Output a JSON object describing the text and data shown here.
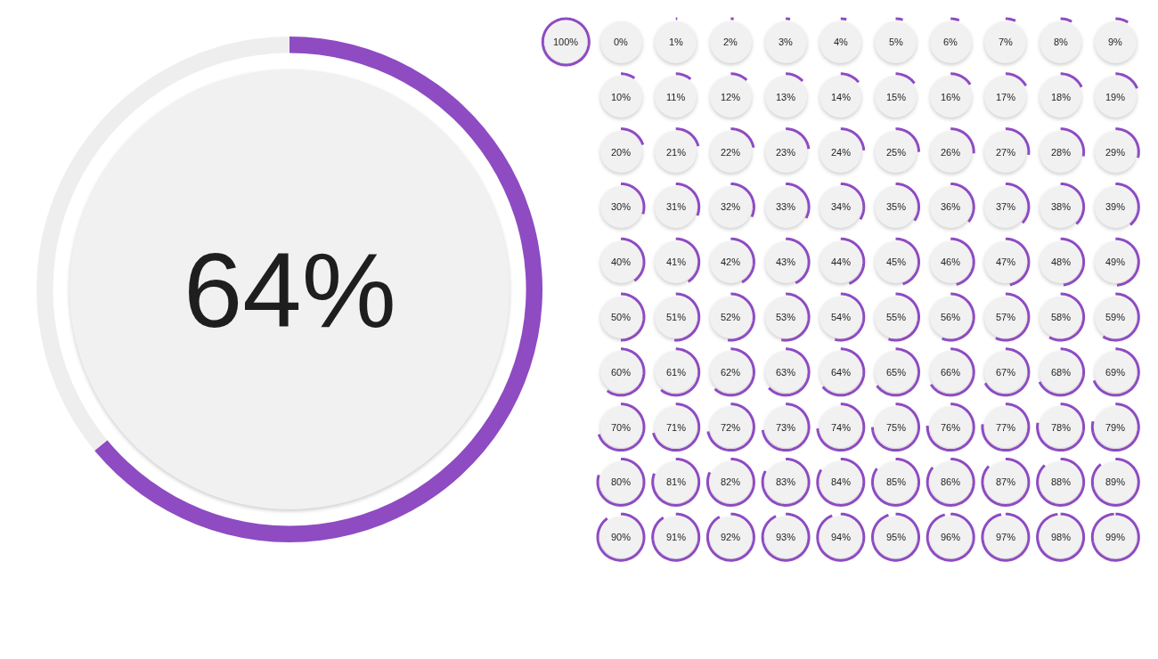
{
  "chart_data": [
    {
      "type": "donut",
      "categories": [
        null,
        null
      ],
      "values": [
        64,
        36
      ],
      "colors": [
        "#8e4bc2",
        "#eeeeee"
      ],
      "annotations": [
        "64%"
      ]
    },
    {
      "type": "other",
      "color": "#8e4bc2",
      "values": [
        100,
        0,
        1,
        2,
        3,
        4,
        5,
        6,
        7,
        8,
        9,
        10,
        11,
        12,
        13,
        14,
        15,
        16,
        17,
        18,
        19,
        20,
        21,
        22,
        23,
        24,
        25,
        26,
        27,
        28,
        29,
        30,
        31,
        32,
        33,
        34,
        35,
        36,
        37,
        38,
        39,
        40,
        41,
        42,
        43,
        44,
        45,
        46,
        47,
        48,
        49,
        50,
        51,
        52,
        53,
        54,
        55,
        56,
        57,
        58,
        59,
        60,
        61,
        62,
        63,
        64,
        65,
        66,
        67,
        68,
        69,
        70,
        71,
        72,
        73,
        74,
        75,
        76,
        77,
        78,
        79,
        80,
        81,
        82,
        83,
        84,
        85,
        86,
        87,
        88,
        89,
        90,
        91,
        92,
        93,
        94,
        95,
        96,
        97,
        98,
        99
      ],
      "value_labels": [
        "100%",
        "0%",
        "1%",
        "2%",
        "3%",
        "4%",
        "5%",
        "6%",
        "7%",
        "8%",
        "9%",
        "10%",
        "11%",
        "12%",
        "13%",
        "14%",
        "15%",
        "16%",
        "17%",
        "18%",
        "19%",
        "20%",
        "21%",
        "22%",
        "23%",
        "24%",
        "25%",
        "26%",
        "27%",
        "28%",
        "29%",
        "30%",
        "31%",
        "32%",
        "33%",
        "34%",
        "35%",
        "36%",
        "37%",
        "38%",
        "39%",
        "40%",
        "41%",
        "42%",
        "43%",
        "44%",
        "45%",
        "46%",
        "47%",
        "48%",
        "49%",
        "50%",
        "51%",
        "52%",
        "53%",
        "54%",
        "55%",
        "56%",
        "57%",
        "58%",
        "59%",
        "60%",
        "61%",
        "62%",
        "63%",
        "64%",
        "65%",
        "66%",
        "67%",
        "68%",
        "69%",
        "70%",
        "71%",
        "72%",
        "73%",
        "74%",
        "75%",
        "76%",
        "77%",
        "78%",
        "79%",
        "80%",
        "81%",
        "82%",
        "83%",
        "84%",
        "85%",
        "86%",
        "87%",
        "88%",
        "89%",
        "90%",
        "91%",
        "92%",
        "93%",
        "94%",
        "95%",
        "96%",
        "97%",
        "98%",
        "99%"
      ]
    }
  ]
}
